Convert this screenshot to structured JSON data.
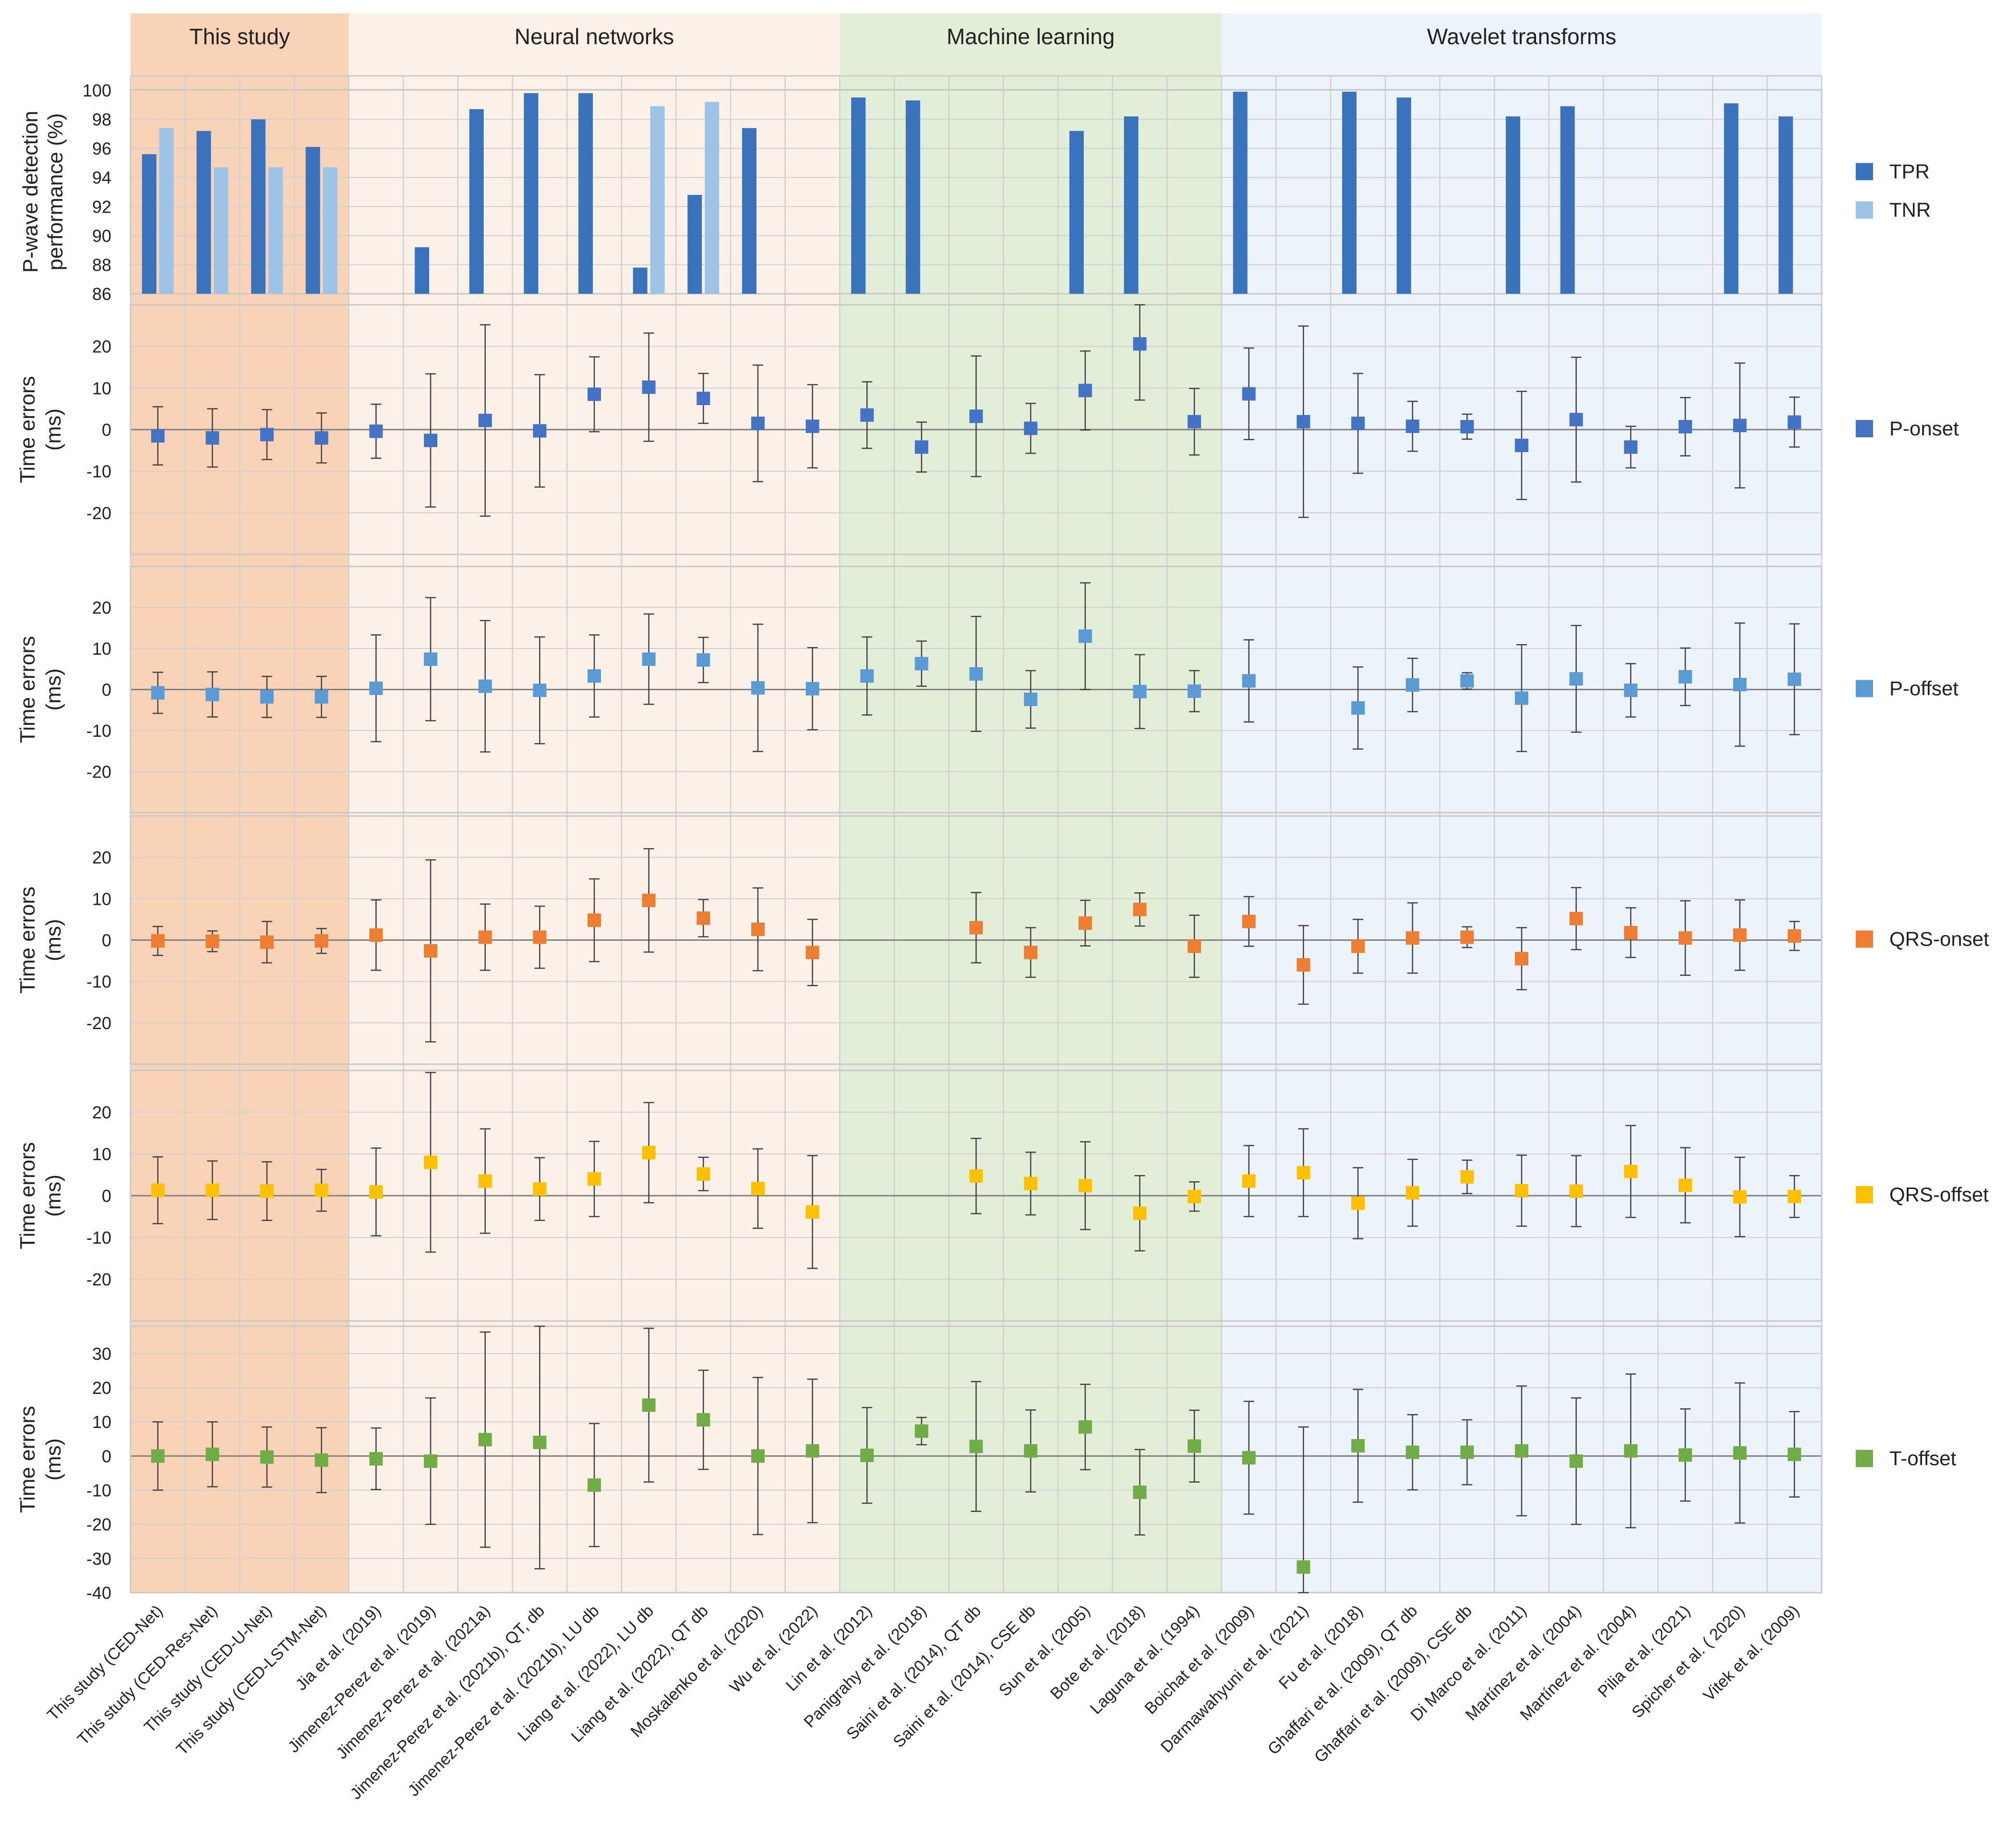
{
  "colors": {
    "this_study_bg": "#f9d3b7",
    "neural_bg": "#fcf1e8",
    "ml_bg": "#e2eed8",
    "wavelet_bg": "#edf3fb",
    "tpr": "#3a73bc",
    "tnr": "#9dc3e6",
    "p_onset": "#4472c4",
    "p_offset": "#5b9bd5",
    "qrs_onset": "#ed7d31",
    "qrs_offset": "#ffc000",
    "t_offset": "#70ad47",
    "grid": "#d0d0d0",
    "errbar": "#404040"
  },
  "chart_data": {
    "type": "bar+errorbar",
    "groups": [
      {
        "label": "This study",
        "start": 0,
        "count": 4
      },
      {
        "label": "Neural networks",
        "start": 4,
        "count": 9
      },
      {
        "label": "Machine learning",
        "start": 13,
        "count": 7
      },
      {
        "label": "Wavelet transforms",
        "start": 20,
        "count": 11
      }
    ],
    "categories": [
      "This study (CED-Net)",
      "This study (CED-Res-Net)",
      "This study (CED-U-Net)",
      "This study (CED-LSTM-Net)",
      "Jia et al. (2019)",
      "Jimenez-Perez et al. (2019)",
      "Jimenez-Perez et al. (2021a)",
      "Jimenez-Perez et al. (2021b), QT, db",
      "Jimenez-Perez et al. (2021b), LU db",
      "Liang et al. (2022), LU db",
      "Liang et al. (2022), QT db",
      "Moskalenko et al. (2020)",
      "Wu et al. (2022)",
      "Lin et al. (2012)",
      "Panigrahy et al. (2018)",
      "Saini et al. (2014), QT db",
      "Saini et al. (2014), CSE db",
      "Sun et al. (2005)",
      "Bote et al. (2018)",
      "Laguna et al. (1994)",
      "Boichat et al. (2009)",
      "Darmawahyuni et al. (2021)",
      "Fu et al. (2018)",
      "Ghaffari et al. (2009), QT db",
      "Ghaffari et al. (2009), CSE db",
      "Di Marco et al. (2011)",
      "Martínez et al. (2004)",
      "Martínez et al. (2004)",
      "Pilia et al. (2021)",
      "Spicher et al. ( 2020)",
      "Vitek et al. (2009)"
    ],
    "bar_panel": {
      "ylabel": "P-wave detection performance (%)",
      "ylim": [
        86,
        100
      ],
      "ticks": [
        86,
        88,
        90,
        92,
        94,
        96,
        98,
        100
      ],
      "series": [
        {
          "name": "TPR",
          "values": [
            95.6,
            97.2,
            98.0,
            96.1,
            null,
            89.2,
            98.7,
            99.8,
            99.8,
            87.8,
            92.8,
            97.4,
            null,
            99.5,
            99.3,
            null,
            null,
            97.2,
            98.2,
            null,
            99.9,
            null,
            99.9,
            99.5,
            null,
            98.2,
            98.9,
            null,
            null,
            99.1,
            98.2
          ]
        },
        {
          "name": "TNR",
          "values": [
            97.4,
            94.7,
            94.7,
            94.7,
            null,
            null,
            null,
            null,
            null,
            98.9,
            99.2,
            null,
            null,
            null,
            null,
            null,
            null,
            null,
            null,
            null,
            null,
            null,
            null,
            null,
            null,
            null,
            null,
            null,
            null,
            null,
            null
          ]
        }
      ]
    },
    "error_panels": [
      {
        "name": "P-onset",
        "ylabel": "Time errors (ms)",
        "ylim": [
          -30,
          30
        ],
        "ticks": [
          -20,
          -10,
          0,
          10,
          20
        ],
        "mean": [
          -1.5,
          -2,
          -1.2,
          -2,
          -0.4,
          -2.6,
          2.2,
          -0.3,
          8.5,
          10.2,
          7.5,
          1.5,
          0.8,
          3.5,
          -4.2,
          3.2,
          0.3,
          9.4,
          20.6,
          1.9,
          8.6,
          1.9,
          1.5,
          0.8,
          0.7,
          -3.8,
          2.4,
          -4.2,
          0.7,
          1,
          1.8
        ],
        "sd": [
          7,
          7,
          6,
          6,
          6.5,
          16,
          23,
          13.5,
          9,
          13,
          6,
          14,
          10,
          8,
          6,
          14.5,
          6,
          9.5,
          13.5,
          8,
          11,
          23,
          12,
          6,
          3,
          13,
          15,
          5,
          7,
          15,
          6
        ]
      },
      {
        "name": "P-offset",
        "ylabel": "Time errors (ms)",
        "ylim": [
          -30,
          30
        ],
        "ticks": [
          -20,
          -10,
          0,
          10,
          20
        ],
        "mean": [
          -0.8,
          -1.2,
          -1.8,
          -1.8,
          0.3,
          7.4,
          0.8,
          -0.2,
          3.3,
          7.4,
          7.2,
          0.4,
          0.2,
          3.3,
          6.3,
          3.8,
          -2.4,
          13,
          -0.5,
          -0.4,
          2.1,
          null,
          -4.5,
          1.1,
          2.1,
          -2.1,
          2.6,
          -0.2,
          3.1,
          1.2,
          2.5
        ],
        "sd": [
          5,
          5.5,
          5,
          5,
          13,
          15,
          16,
          13,
          10,
          11,
          5.5,
          15.5,
          10,
          9.5,
          5.5,
          14,
          7,
          13,
          9,
          5,
          10,
          null,
          10,
          6.5,
          2,
          13,
          13,
          6.5,
          7,
          15,
          13.5
        ]
      },
      {
        "name": "QRS-onset",
        "ylabel": "Time errors (ms)",
        "ylim": [
          -30,
          30
        ],
        "ticks": [
          -20,
          -10,
          0,
          10,
          20
        ],
        "mean": [
          -0.2,
          -0.3,
          -0.5,
          -0.2,
          1.2,
          -2.6,
          0.7,
          0.7,
          4.8,
          9.6,
          5.3,
          2.6,
          -3,
          null,
          null,
          3,
          -3,
          4.1,
          7.4,
          -1.5,
          4.5,
          -6,
          -1.5,
          0.5,
          0.7,
          -4.5,
          5.2,
          1.8,
          0.5,
          1.2,
          1
        ],
        "sd": [
          3.5,
          2.5,
          5,
          3,
          8.5,
          22,
          8,
          7.5,
          10,
          12.5,
          4.5,
          10,
          8,
          null,
          null,
          8.5,
          6,
          5.5,
          4,
          7.5,
          6,
          9.5,
          6.5,
          8.5,
          2.5,
          7.5,
          7.5,
          6,
          9,
          8.5,
          3.5
        ]
      },
      {
        "name": "QRS-offset",
        "ylabel": "Time errors (ms)",
        "ylim": [
          -30,
          30
        ],
        "ticks": [
          -20,
          -10,
          0,
          10,
          20
        ],
        "mean": [
          1.3,
          1.3,
          1.1,
          1.3,
          0.9,
          8,
          3.5,
          1.6,
          4,
          10.3,
          5.2,
          1.7,
          -3.9,
          null,
          null,
          4.7,
          2.9,
          2.4,
          -4.2,
          -0.2,
          3.5,
          5.5,
          -1.8,
          0.7,
          4.5,
          1.2,
          1.1,
          5.8,
          2.5,
          -0.3,
          -0.2
        ],
        "sd": [
          8,
          7,
          7,
          5,
          10.5,
          21.5,
          12.5,
          7.5,
          9,
          12,
          4,
          9.5,
          13.5,
          null,
          null,
          9,
          7.5,
          10.5,
          9,
          3.5,
          8.5,
          10.5,
          8.5,
          8,
          4,
          8.5,
          8.5,
          11,
          9,
          9.5,
          5
        ]
      },
      {
        "name": "T-offset",
        "ylabel": "Time errors (ms)",
        "ylim": [
          -40,
          38
        ],
        "ticks": [
          -40,
          -30,
          -20,
          -10,
          0,
          10,
          20,
          30
        ],
        "mean": [
          0,
          0.5,
          -0.3,
          -1.2,
          -0.8,
          -1.5,
          4.8,
          4,
          -8.5,
          14.9,
          10.6,
          0,
          1.5,
          0.2,
          7.3,
          2.8,
          1.5,
          8.5,
          -10.6,
          2.9,
          -0.5,
          -32.5,
          3,
          1.1,
          1.1,
          1.5,
          -1.5,
          1.5,
          0.3,
          0.9,
          0.5
        ],
        "sd": [
          10,
          9.5,
          8.8,
          9.5,
          9,
          18.5,
          31.5,
          37,
          18,
          22.5,
          14.5,
          23,
          21,
          14,
          4,
          19,
          12,
          12.5,
          12.5,
          10.5,
          16.5,
          41,
          16.5,
          11,
          9.5,
          19,
          18.5,
          22.5,
          13.5,
          20.5,
          12.5
        ]
      }
    ],
    "legends": [
      {
        "panel": 0,
        "items": [
          {
            "label": "TPR",
            "color_key": "tpr"
          },
          {
            "label": "TNR",
            "color_key": "tnr"
          }
        ]
      },
      {
        "panel": 1,
        "items": [
          {
            "label": "P-onset",
            "color_key": "p_onset"
          }
        ]
      },
      {
        "panel": 2,
        "items": [
          {
            "label": "P-offset",
            "color_key": "p_offset"
          }
        ]
      },
      {
        "panel": 3,
        "items": [
          {
            "label": "QRS-onset",
            "color_key": "qrs_onset"
          }
        ]
      },
      {
        "panel": 4,
        "items": [
          {
            "label": "QRS-offset",
            "color_key": "qrs_offset"
          }
        ]
      },
      {
        "panel": 5,
        "items": [
          {
            "label": "T-offset",
            "color_key": "t_offset"
          }
        ]
      }
    ]
  }
}
